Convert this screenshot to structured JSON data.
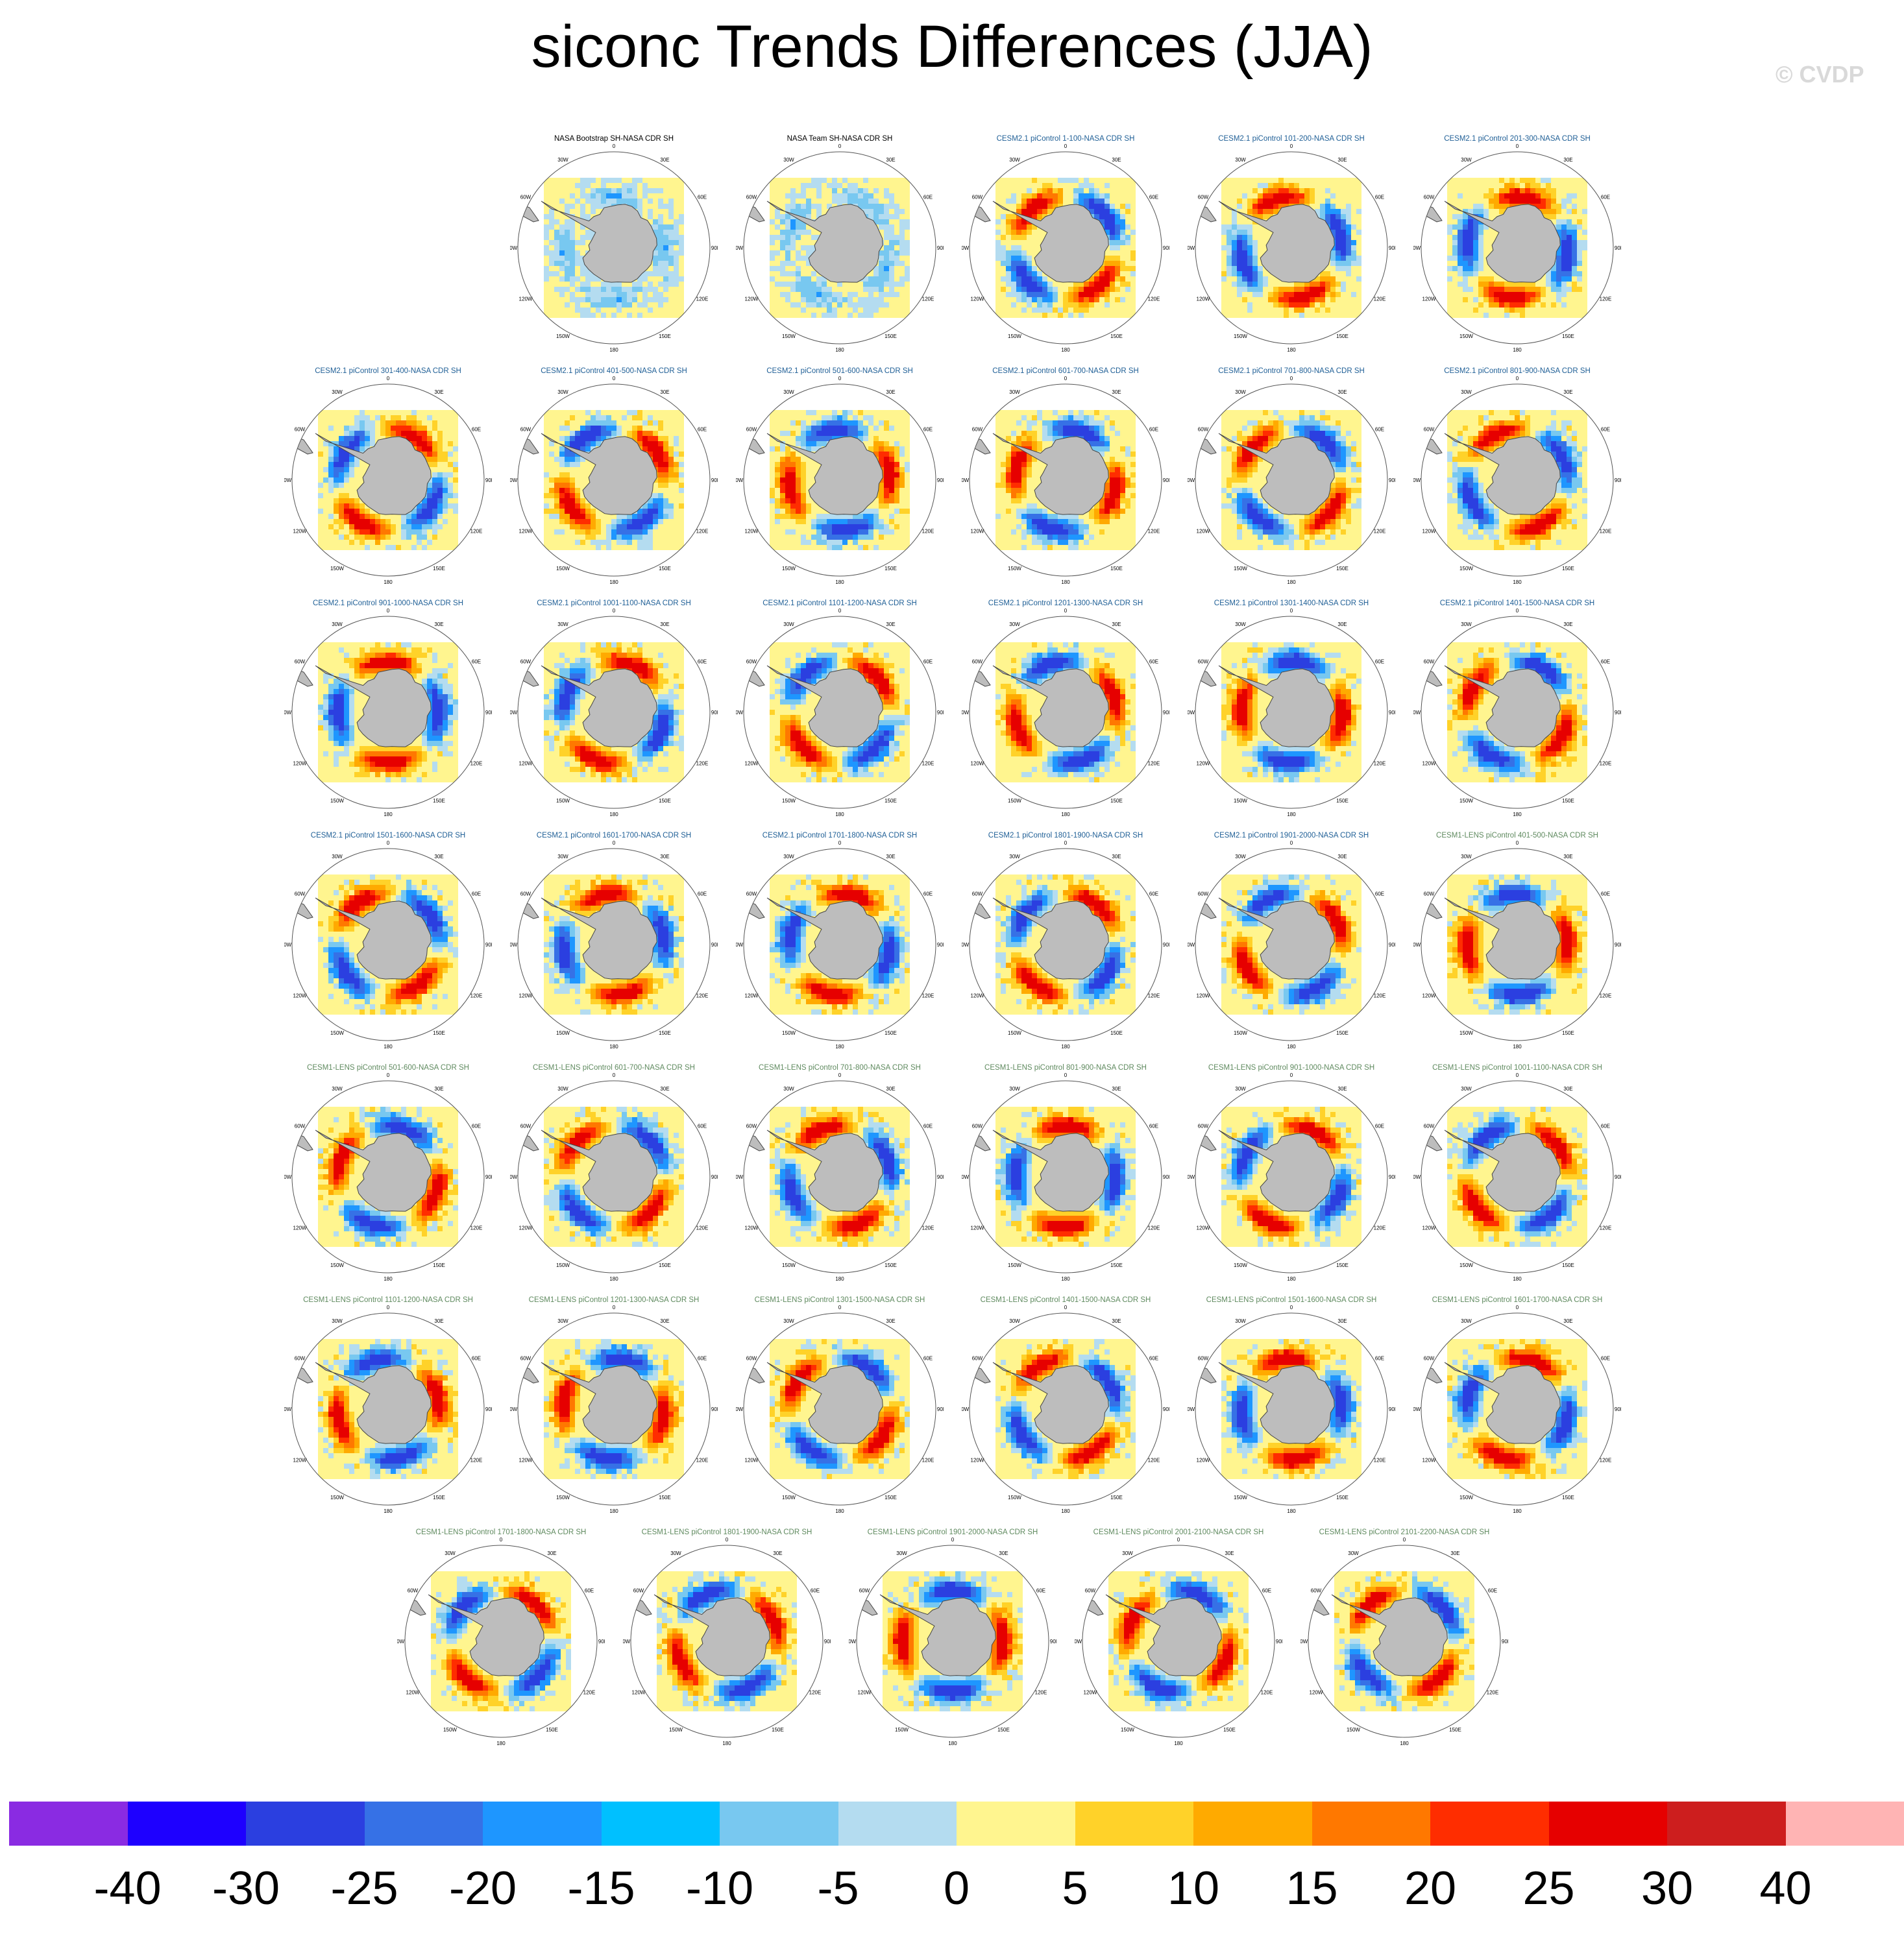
{
  "title": "siconc Trends Differences (JJA)",
  "watermark": "© CVDP",
  "colors": {
    "obs_title": "#000000",
    "cesm2_title": "#1f5f96",
    "cesm1_title": "#5f8a5f",
    "land": "#bdbdbd",
    "ocean_fill": "#fff58f"
  },
  "map_labels": {
    "top": "0",
    "bottom": "180",
    "left_90": "90W",
    "right_90": "90E",
    "l30": "30W",
    "r30": "30E",
    "l60": "60W",
    "r60": "60E",
    "l120": "120W",
    "r120": "120E",
    "l150": "150W",
    "r150": "150E"
  },
  "panels": [
    {
      "title": "NASA Bootstrap SH-NASA CDR SH",
      "group": "obs"
    },
    {
      "title": "NASA Team SH-NASA CDR SH",
      "group": "obs"
    },
    {
      "title": "CESM2.1 piControl 1-100-NASA CDR SH",
      "group": "cesm2"
    },
    {
      "title": "CESM2.1 piControl 101-200-NASA CDR SH",
      "group": "cesm2"
    },
    {
      "title": "CESM2.1 piControl 201-300-NASA CDR SH",
      "group": "cesm2"
    },
    {
      "title": "CESM2.1 piControl 301-400-NASA CDR SH",
      "group": "cesm2"
    },
    {
      "title": "CESM2.1 piControl 401-500-NASA CDR SH",
      "group": "cesm2"
    },
    {
      "title": "CESM2.1 piControl 501-600-NASA CDR SH",
      "group": "cesm2"
    },
    {
      "title": "CESM2.1 piControl 601-700-NASA CDR SH",
      "group": "cesm2"
    },
    {
      "title": "CESM2.1 piControl 701-800-NASA CDR SH",
      "group": "cesm2"
    },
    {
      "title": "CESM2.1 piControl 801-900-NASA CDR SH",
      "group": "cesm2"
    },
    {
      "title": "CESM2.1 piControl 901-1000-NASA CDR SH",
      "group": "cesm2"
    },
    {
      "title": "CESM2.1 piControl 1001-1100-NASA CDR SH",
      "group": "cesm2"
    },
    {
      "title": "CESM2.1 piControl 1101-1200-NASA CDR SH",
      "group": "cesm2"
    },
    {
      "title": "CESM2.1 piControl 1201-1300-NASA CDR SH",
      "group": "cesm2"
    },
    {
      "title": "CESM2.1 piControl 1301-1400-NASA CDR SH",
      "group": "cesm2"
    },
    {
      "title": "CESM2.1 piControl 1401-1500-NASA CDR SH",
      "group": "cesm2"
    },
    {
      "title": "CESM2.1 piControl 1501-1600-NASA CDR SH",
      "group": "cesm2"
    },
    {
      "title": "CESM2.1 piControl 1601-1700-NASA CDR SH",
      "group": "cesm2"
    },
    {
      "title": "CESM2.1 piControl 1701-1800-NASA CDR SH",
      "group": "cesm2"
    },
    {
      "title": "CESM2.1 piControl 1801-1900-NASA CDR SH",
      "group": "cesm2"
    },
    {
      "title": "CESM2.1 piControl 1901-2000-NASA CDR SH",
      "group": "cesm2"
    },
    {
      "title": "CESM1-LENS piControl 401-500-NASA CDR SH",
      "group": "cesm1"
    },
    {
      "title": "CESM1-LENS piControl 501-600-NASA CDR SH",
      "group": "cesm1"
    },
    {
      "title": "CESM1-LENS piControl 601-700-NASA CDR SH",
      "group": "cesm1"
    },
    {
      "title": "CESM1-LENS piControl 701-800-NASA CDR SH",
      "group": "cesm1"
    },
    {
      "title": "CESM1-LENS piControl 801-900-NASA CDR SH",
      "group": "cesm1"
    },
    {
      "title": "CESM1-LENS piControl 901-1000-NASA CDR SH",
      "group": "cesm1"
    },
    {
      "title": "CESM1-LENS piControl 1001-1100-NASA CDR SH",
      "group": "cesm1"
    },
    {
      "title": "CESM1-LENS piControl 1101-1200-NASA CDR SH",
      "group": "cesm1"
    },
    {
      "title": "CESM1-LENS piControl 1201-1300-NASA CDR SH",
      "group": "cesm1"
    },
    {
      "title": "CESM1-LENS piControl 1301-1500-NASA CDR SH",
      "group": "cesm1"
    },
    {
      "title": "CESM1-LENS piControl 1401-1500-NASA CDR SH",
      "group": "cesm1"
    },
    {
      "title": "CESM1-LENS piControl 1501-1600-NASA CDR SH",
      "group": "cesm1"
    },
    {
      "title": "CESM1-LENS piControl 1601-1700-NASA CDR SH",
      "group": "cesm1"
    },
    {
      "title": "CESM1-LENS piControl 1701-1800-NASA CDR SH",
      "group": "cesm1"
    },
    {
      "title": "CESM1-LENS piControl 1801-1900-NASA CDR SH",
      "group": "cesm1"
    },
    {
      "title": "CESM1-LENS piControl 1901-2000-NASA CDR SH",
      "group": "cesm1"
    },
    {
      "title": "CESM1-LENS piControl 2001-2100-NASA CDR SH",
      "group": "cesm1"
    },
    {
      "title": "CESM1-LENS piControl 2101-2200-NASA CDR SH",
      "group": "cesm1"
    }
  ],
  "colorbar": {
    "colors": [
      "#8a2be2",
      "#1e00ff",
      "#2b3fe0",
      "#3671e6",
      "#1e96ff",
      "#00c0ff",
      "#78c8f0",
      "#b4dcf0",
      "#fff58f",
      "#ffd229",
      "#ffaa00",
      "#ff7800",
      "#ff2d00",
      "#e60000",
      "#cd1e1e",
      "#ffb4b4"
    ],
    "labels": [
      "-40",
      "-30",
      "-25",
      "-20",
      "-15",
      "-10",
      "-5",
      "0",
      "5",
      "10",
      "15",
      "20",
      "25",
      "30",
      "40"
    ]
  }
}
